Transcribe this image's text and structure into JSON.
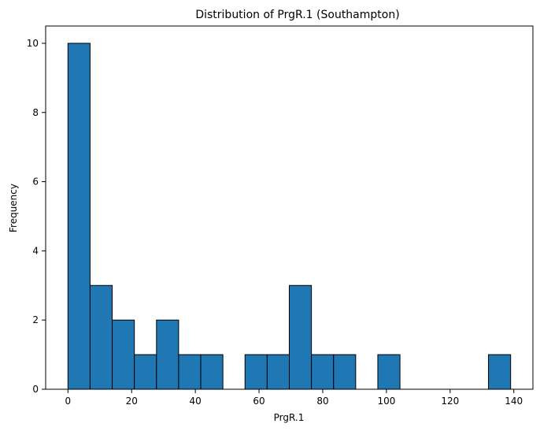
{
  "chart_data": {
    "type": "bar",
    "title": "Distribution of PrgR.1 (Southampton)",
    "xlabel": "PrgR.1",
    "ylabel": "Frequency",
    "xlim": [
      -7,
      146
    ],
    "ylim": [
      0,
      10.5
    ],
    "xticks": [
      0,
      20,
      40,
      60,
      80,
      100,
      120,
      140
    ],
    "yticks": [
      0,
      2,
      4,
      6,
      8,
      10
    ],
    "bin_edges": [
      0,
      6.95,
      13.9,
      20.85,
      27.8,
      34.75,
      41.7,
      48.65,
      55.6,
      62.55,
      69.5,
      76.45,
      83.4,
      90.35,
      97.3,
      104.25,
      111.2,
      118.15,
      125.1,
      132.05,
      139.0
    ],
    "values": [
      10,
      3,
      2,
      1,
      2,
      1,
      1,
      0,
      1,
      1,
      3,
      1,
      1,
      0,
      1,
      0,
      0,
      0,
      0,
      1
    ],
    "bar_color": "#1f77b4",
    "edge_color": "#000000",
    "grid": false,
    "legend": false
  }
}
